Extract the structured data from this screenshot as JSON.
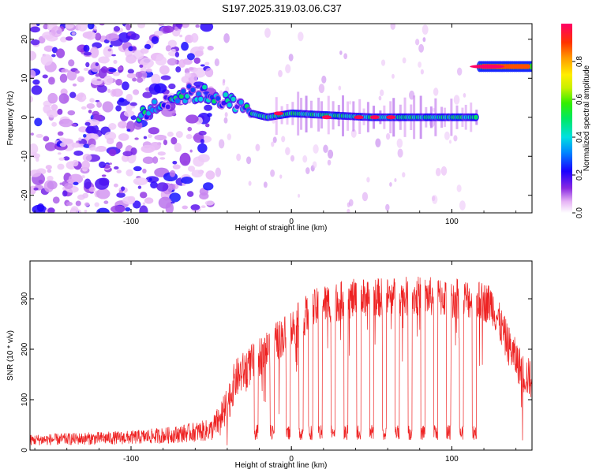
{
  "title": "S197.2025.319.03.06.C37",
  "chart_data": [
    {
      "type": "heatmap",
      "name": "spectrogram",
      "title": "S197.2025.319.03.06.C37",
      "xlabel": "Height of straight line (km)",
      "ylabel": "Frequency (Hz)",
      "xlim": [
        -163,
        150
      ],
      "ylim": [
        -24.5,
        24
      ],
      "xticks": [
        -100,
        0,
        100
      ],
      "yticks": [
        -20,
        -10,
        0,
        10,
        20
      ],
      "colorbar": {
        "label": "Normalized spectral amplitude",
        "range": [
          0.0,
          1.0
        ],
        "ticks": [
          "0.0",
          "0.2",
          "0.4",
          "0.6",
          "0.8"
        ],
        "tick_values": [
          0.0,
          0.2,
          0.4,
          0.6,
          0.8
        ]
      },
      "ridge": [
        {
          "x": -95,
          "y": 0
        },
        {
          "x": -85,
          "y": 3
        },
        {
          "x": -75,
          "y": 5
        },
        {
          "x": -65,
          "y": 6
        },
        {
          "x": -55,
          "y": 6
        },
        {
          "x": -45,
          "y": 5
        },
        {
          "x": -35,
          "y": 3
        },
        {
          "x": -25,
          "y": 1
        },
        {
          "x": -15,
          "y": 0
        },
        {
          "x": 0,
          "y": 1
        },
        {
          "x": 50,
          "y": 0
        },
        {
          "x": 115,
          "y": 0
        },
        {
          "x": 117,
          "y": 13
        },
        {
          "x": 150,
          "y": 13
        }
      ],
      "peaks": [
        {
          "x": -8,
          "y": 1,
          "amp": 0.98
        },
        {
          "x": 22,
          "y": 0,
          "amp": 0.98
        },
        {
          "x": 42,
          "y": 0,
          "amp": 0.98
        },
        {
          "x": 52,
          "y": 0,
          "amp": 0.98
        },
        {
          "x": 62,
          "y": 0,
          "amp": 0.98
        },
        {
          "x": 122,
          "y": 13,
          "amp": 1.0
        }
      ]
    },
    {
      "type": "line",
      "name": "snr",
      "xlabel": "Height of straight line (km)",
      "ylabel": "SNR (10 * v/v)",
      "xlim": [
        -163,
        150
      ],
      "ylim": [
        0,
        375
      ],
      "xticks": [
        -100,
        0,
        100
      ],
      "yticks": [
        0,
        100,
        200,
        300
      ],
      "color": "#ee2222",
      "envelope": [
        {
          "x": -163,
          "y": 20
        },
        {
          "x": -100,
          "y": 25
        },
        {
          "x": -75,
          "y": 30
        },
        {
          "x": -50,
          "y": 40
        },
        {
          "x": -42,
          "y": 70
        },
        {
          "x": -35,
          "y": 140
        },
        {
          "x": -25,
          "y": 170
        },
        {
          "x": -15,
          "y": 200
        },
        {
          "x": 0,
          "y": 240
        },
        {
          "x": 10,
          "y": 270
        },
        {
          "x": 20,
          "y": 290
        },
        {
          "x": 40,
          "y": 300
        },
        {
          "x": 80,
          "y": 305
        },
        {
          "x": 110,
          "y": 300
        },
        {
          "x": 125,
          "y": 290
        },
        {
          "x": 135,
          "y": 210
        },
        {
          "x": 145,
          "y": 150
        },
        {
          "x": 150,
          "y": 140
        }
      ],
      "dropouts_x": [
        -22,
        -12,
        -2,
        6,
        12,
        18,
        26,
        34,
        42,
        50,
        58,
        66,
        74,
        82,
        90,
        98,
        106,
        114
      ]
    }
  ]
}
